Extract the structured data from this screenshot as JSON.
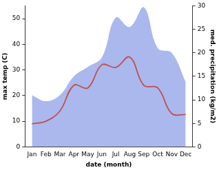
{
  "chart_data": {
    "type": "line",
    "x_label": "date (month)",
    "y_label": "max temp (C)",
    "y2_label": "med. precipitation (kg/m2)",
    "categories": [
      "Jan",
      "Feb",
      "Mar",
      "Apr",
      "May",
      "Jun",
      "Jul",
      "Aug",
      "Sep",
      "Oct",
      "Nov",
      "Dec"
    ],
    "series": [
      {
        "name": "max temp (C)",
        "type": "line",
        "color": "#c0504d",
        "values": [
          9,
          10,
          14,
          24,
          23,
          32,
          31,
          35,
          24,
          23,
          13,
          12.6
        ]
      },
      {
        "name": "med. precipitation (kg/m2)",
        "type": "area",
        "color": "#aab8ee",
        "axis": "y2",
        "values": [
          11,
          9.7,
          11,
          15,
          17,
          19,
          27.5,
          25.5,
          29.7,
          21,
          20,
          13.8
        ]
      }
    ],
    "ylim": [
      0,
      55
    ],
    "yticks": [
      0,
      10,
      20,
      30,
      40,
      50
    ],
    "y2lim": [
      0,
      30
    ],
    "y2ticks": [
      0,
      5,
      10,
      15,
      20,
      25,
      30
    ],
    "grid": false
  }
}
